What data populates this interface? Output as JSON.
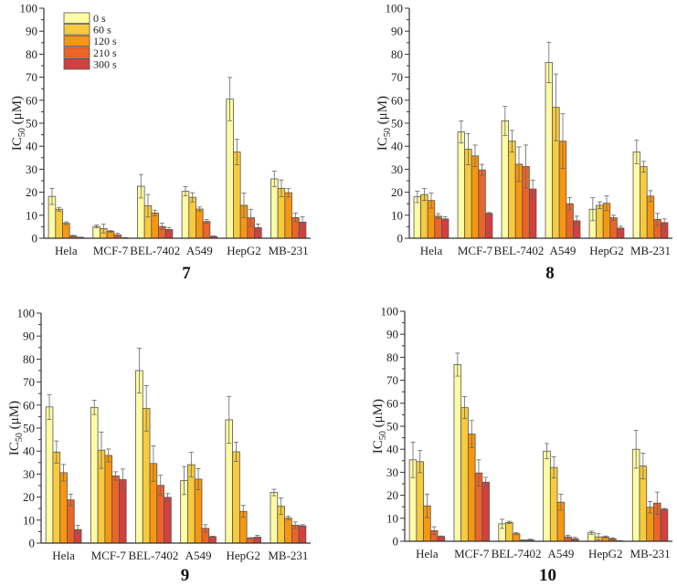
{
  "chart_data": {
    "type": "bar",
    "categories": [
      "Hela",
      "MCF-7",
      "BEL-7402",
      "A549",
      "HepG2",
      "MB-231"
    ],
    "legend": [
      "0 s",
      "60 s",
      "120 s",
      "210 s",
      "300 s"
    ],
    "legend_placement": "top-left (panel 7)",
    "colors": [
      "#FFFCA3",
      "#F8CA3C",
      "#F79611",
      "#EB6428",
      "#D2403F"
    ],
    "ylabel": {
      "main": "IC",
      "sub": "50",
      "unit": " (μM)"
    },
    "ylim": [
      0,
      100
    ],
    "yticks": [
      0,
      10,
      20,
      30,
      40,
      50,
      60,
      70,
      80,
      90,
      100
    ],
    "panels": [
      {
        "title": "7",
        "values": [
          [
            18.2,
            12.6,
            6.5,
            1.0,
            0.4
          ],
          [
            5.1,
            4.2,
            3.0,
            1.5,
            0.2
          ],
          [
            22.6,
            14.1,
            11.0,
            5.1,
            3.8
          ],
          [
            20.4,
            17.8,
            12.7,
            7.3,
            0.8
          ],
          [
            60.5,
            37.5,
            14.3,
            8.9,
            4.6
          ],
          [
            25.8,
            21.7,
            19.8,
            9.0,
            7.0
          ]
        ],
        "errors": [
          [
            3.5,
            0.8,
            0.6,
            0.3,
            0.1
          ],
          [
            0.6,
            1.9,
            0.3,
            0.7,
            0.1
          ],
          [
            5.1,
            4.9,
            1.2,
            1.4,
            0.9
          ],
          [
            2.0,
            2.0,
            0.9,
            0.8,
            0.2
          ],
          [
            9.4,
            5.5,
            5.3,
            3.7,
            1.6
          ],
          [
            3.4,
            3.6,
            1.9,
            1.9,
            2.4
          ]
        ]
      },
      {
        "title": "8",
        "values": [
          [
            18.0,
            19.0,
            16.4,
            9.6,
            8.4
          ],
          [
            46.2,
            38.7,
            35.8,
            29.7,
            10.8
          ],
          [
            51.0,
            42.2,
            32.2,
            31.2,
            21.4
          ],
          [
            76.4,
            56.9,
            42.2,
            15.0,
            7.6
          ],
          [
            12.6,
            14.3,
            15.2,
            8.9,
            4.4
          ],
          [
            37.5,
            31.1,
            18.3,
            8.2,
            6.8
          ]
        ],
        "errors": [
          [
            2.5,
            2.6,
            3.3,
            1.1,
            1.0
          ],
          [
            4.8,
            6.7,
            4.7,
            2.4,
            0.4
          ],
          [
            6.3,
            4.7,
            7.5,
            9.3,
            3.9
          ],
          [
            8.8,
            14.5,
            11.9,
            2.6,
            2.0
          ],
          [
            5.0,
            1.5,
            3.2,
            1.1,
            0.8
          ],
          [
            5.1,
            2.3,
            2.4,
            2.6,
            1.6
          ]
        ]
      },
      {
        "title": "9",
        "values": [
          [
            59.2,
            39.6,
            30.6,
            18.8,
            5.9
          ],
          [
            59.0,
            40.4,
            38.1,
            29.2,
            27.6
          ],
          [
            75.0,
            58.6,
            34.6,
            25.1,
            19.9
          ],
          [
            27.2,
            34.1,
            27.8,
            6.4,
            2.8
          ],
          [
            53.6,
            39.7,
            13.8,
            2.1,
            2.6
          ],
          [
            22.0,
            16.0,
            10.9,
            7.8,
            7.5
          ]
        ],
        "errors": [
          [
            5.4,
            4.8,
            3.6,
            2.5,
            1.8
          ],
          [
            3.1,
            7.9,
            2.8,
            1.8,
            4.6
          ],
          [
            9.8,
            9.9,
            7.7,
            4.4,
            1.6
          ],
          [
            6.1,
            5.4,
            4.6,
            1.6,
            0.2
          ],
          [
            10.2,
            4.2,
            2.6,
            0.3,
            0.8
          ],
          [
            1.4,
            3.6,
            0.8,
            1.4,
            0.5
          ]
        ]
      },
      {
        "title": "10",
        "values": [
          [
            35.4,
            34.6,
            15.4,
            4.6,
            2.1
          ],
          [
            76.8,
            58.1,
            46.6,
            29.7,
            25.7
          ],
          [
            7.6,
            8.2,
            3.3,
            0.5,
            0.6
          ],
          [
            39.2,
            32.1,
            17.0,
            1.9,
            1.1
          ],
          [
            3.7,
            1.9,
            1.9,
            1.1,
            0.2
          ],
          [
            40.0,
            32.7,
            14.8,
            16.6,
            13.9
          ]
        ],
        "errors": [
          [
            7.7,
            4.8,
            5.1,
            1.7,
            0.2
          ],
          [
            5.0,
            4.8,
            5.9,
            5.7,
            2.1
          ],
          [
            2.0,
            0.5,
            0.5,
            0.1,
            0.3
          ],
          [
            3.3,
            4.6,
            3.5,
            0.7,
            0.6
          ],
          [
            0.7,
            1.4,
            0.4,
            0.4,
            0.1
          ],
          [
            8.2,
            5.6,
            2.5,
            4.8,
            0.4
          ]
        ]
      }
    ]
  }
}
